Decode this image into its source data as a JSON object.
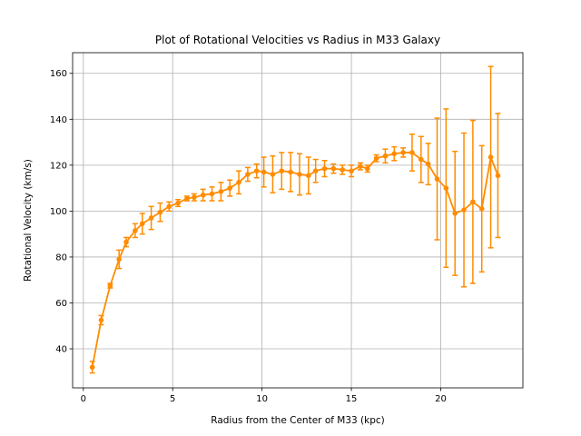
{
  "chart_data": {
    "type": "line",
    "title": "Plot of Rotational Velocities vs Radius in M33 Galaxy",
    "xlabel": "Radius from the Center of M33 (kpc)",
    "ylabel": "Rotational Velocity (km/s)",
    "xlim": [
      -0.6,
      24.6
    ],
    "ylim": [
      23,
      169
    ],
    "xticks": [
      0,
      5,
      10,
      15,
      20
    ],
    "yticks": [
      40,
      60,
      80,
      100,
      120,
      140,
      160
    ],
    "grid": true,
    "error_bars": true,
    "series": [
      {
        "name": "",
        "color": "#ff8c00",
        "x": [
          0.5,
          1.0,
          1.5,
          2.0,
          2.4,
          2.9,
          3.3,
          3.8,
          4.3,
          4.8,
          5.3,
          5.8,
          6.2,
          6.7,
          7.2,
          7.7,
          8.2,
          8.7,
          9.2,
          9.7,
          10.1,
          10.6,
          11.1,
          11.6,
          12.1,
          12.6,
          13.0,
          13.5,
          14.0,
          14.5,
          15.0,
          15.5,
          15.9,
          16.4,
          16.9,
          17.4,
          17.9,
          18.4,
          18.9,
          19.3,
          19.8,
          20.3,
          20.8,
          21.3,
          21.8,
          22.3,
          22.8,
          23.2
        ],
        "y": [
          32,
          52.5,
          67.5,
          79,
          86.5,
          91.5,
          94.5,
          97,
          99.5,
          102,
          103.5,
          105.5,
          106,
          107,
          107.5,
          108.5,
          110,
          112.5,
          116,
          117.5,
          117,
          116,
          117.5,
          117,
          116,
          115.5,
          117.5,
          118.5,
          118.5,
          118,
          117.5,
          119.5,
          118.5,
          123,
          124,
          125,
          125.5,
          125.5,
          122.5,
          120.5,
          114,
          110,
          99,
          100.5,
          104,
          101,
          123.5,
          115.5
        ],
        "err": [
          2.5,
          2,
          1,
          4,
          2,
          3,
          4.5,
          5,
          4,
          2,
          1.5,
          1,
          1.5,
          2.5,
          3,
          4,
          3.5,
          5,
          3,
          3,
          6.5,
          8,
          8,
          8.5,
          9,
          8,
          5,
          3.5,
          2,
          2,
          2.5,
          1.5,
          1.5,
          1.5,
          3,
          3,
          2,
          8,
          10,
          9,
          26.5,
          34.5,
          27,
          33.5,
          35.5,
          27.5,
          39.5,
          27
        ]
      }
    ]
  }
}
